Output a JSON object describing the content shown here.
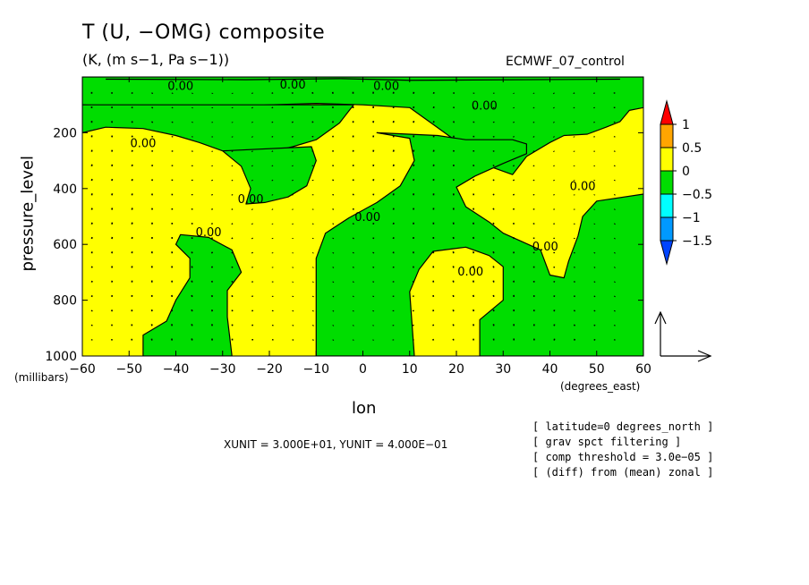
{
  "title": "T (U, −OMG) composite",
  "units": "(K, (m s−1, Pa s−1))",
  "dataset": "ECMWF_07_control",
  "annotations": [
    "[ latitude=0 degrees_north ]",
    "[ grav spct filtering ]",
    "[ comp threshold = 3.0e−05 ]",
    "[ (diff) from (mean) zonal ]"
  ],
  "vector_scale": "XUNIT = 3.000E+01, YUNIT = 4.000E−01",
  "contour_label": "0.00",
  "colorbar": {
    "labels": [
      "1",
      "0.5",
      "0",
      "−0.5",
      "−1",
      "−1.5"
    ],
    "colors": [
      "#ff0000",
      "#ffa500",
      "#ffff00",
      "#00dd00",
      "#00ffff",
      "#0099ff",
      "#0044ff"
    ]
  },
  "chart_data": {
    "type": "heatmap",
    "title": "T (U, −OMG) composite",
    "xlabel": "lon",
    "xunit": "(degrees_east)",
    "ylabel": "pressure_level",
    "yunit": "(millibars)",
    "xlim": [
      -60,
      60
    ],
    "ylim": [
      1000,
      0
    ],
    "x_ticks": [
      -60,
      -50,
      -40,
      -30,
      -20,
      -10,
      0,
      10,
      20,
      30,
      40,
      50,
      60
    ],
    "y_ticks": [
      200,
      400,
      600,
      800,
      1000
    ],
    "x_tick_labels": [
      "−60",
      "−50",
      "−40",
      "−30",
      "−20",
      "−10",
      "0",
      "10",
      "20",
      "30",
      "40",
      "50",
      "60"
    ],
    "y_tick_labels": [
      "200",
      "400",
      "600",
      "800",
      "1000"
    ],
    "contour_levels": [
      -1.5,
      -1,
      -0.5,
      0,
      0.5,
      1
    ],
    "background_field": "positive (0 to 0.5)",
    "negative_regions": [
      {
        "name": "upper band",
        "points": [
          [
            -60,
            100
          ],
          [
            -50,
            110
          ],
          [
            -40,
            130
          ],
          [
            -30,
            110
          ],
          [
            -20,
            100
          ],
          [
            -10,
            95
          ],
          [
            0,
            100
          ],
          [
            10,
            110
          ],
          [
            15,
            170
          ],
          [
            20,
            230
          ],
          [
            27,
            320
          ],
          [
            32,
            350
          ],
          [
            35,
            285
          ],
          [
            40,
            235
          ],
          [
            43,
            210
          ],
          [
            48,
            205
          ],
          [
            52,
            180
          ],
          [
            55,
            160
          ],
          [
            57,
            120
          ],
          [
            60,
            110
          ],
          [
            60,
            0
          ],
          [
            -60,
            0
          ]
        ]
      },
      {
        "name": "upper-left tongue",
        "points": [
          [
            -60,
            200
          ],
          [
            -55,
            180
          ],
          [
            -47,
            185
          ],
          [
            -40,
            210
          ],
          [
            -35,
            235
          ],
          [
            -30,
            265
          ],
          [
            -25,
            280
          ],
          [
            -20,
            270
          ],
          [
            -15,
            250
          ],
          [
            -10,
            225
          ],
          [
            -5,
            165
          ],
          [
            -2,
            100
          ],
          [
            -60,
            100
          ]
        ]
      },
      {
        "name": "mid-left tongue",
        "points": [
          [
            -30,
            265
          ],
          [
            -26,
            320
          ],
          [
            -24,
            400
          ],
          [
            -25,
            455
          ],
          [
            -21,
            450
          ],
          [
            -16,
            430
          ],
          [
            -12,
            390
          ],
          [
            -10,
            300
          ],
          [
            -11,
            250
          ]
        ]
      },
      {
        "name": "central column",
        "points": [
          [
            3,
            200
          ],
          [
            10,
            220
          ],
          [
            11,
            300
          ],
          [
            8,
            390
          ],
          [
            3,
            450
          ],
          [
            -3,
            505
          ],
          [
            -8,
            560
          ],
          [
            -10,
            650
          ],
          [
            -10,
            820
          ],
          [
            -10,
            1000
          ],
          [
            11,
            1000
          ],
          [
            10,
            770
          ],
          [
            12,
            690
          ],
          [
            15,
            625
          ],
          [
            22,
            610
          ],
          [
            27,
            640
          ],
          [
            30,
            680
          ],
          [
            30,
            800
          ],
          [
            25,
            870
          ],
          [
            25,
            1000
          ],
          [
            60,
            1000
          ],
          [
            60,
            420
          ],
          [
            50,
            445
          ],
          [
            47,
            500
          ],
          [
            46,
            570
          ],
          [
            44,
            660
          ],
          [
            43,
            720
          ],
          [
            40,
            710
          ],
          [
            38,
            620
          ],
          [
            30,
            560
          ],
          [
            27,
            520
          ],
          [
            22,
            465
          ],
          [
            20,
            395
          ],
          [
            24,
            355
          ],
          [
            30,
            310
          ],
          [
            35,
            275
          ],
          [
            35,
            240
          ],
          [
            32,
            225
          ],
          [
            22,
            225
          ],
          [
            16,
            210
          ]
        ]
      },
      {
        "name": "lower-left tongue",
        "points": [
          [
            -39,
            565
          ],
          [
            -33,
            575
          ],
          [
            -28,
            620
          ],
          [
            -26,
            700
          ],
          [
            -29,
            765
          ],
          [
            -29,
            860
          ],
          [
            -28,
            1000
          ],
          [
            -47,
            1000
          ],
          [
            -47,
            925
          ],
          [
            -42,
            875
          ],
          [
            -40,
            800
          ],
          [
            -37,
            720
          ],
          [
            -37,
            650
          ],
          [
            -40,
            600
          ]
        ]
      }
    ],
    "contour_zero_labels": [
      {
        "lon": -39,
        "p": 35
      },
      {
        "lon": -15,
        "p": 30
      },
      {
        "lon": 5,
        "p": 35
      },
      {
        "lon": 26,
        "p": 105
      },
      {
        "lon": -47,
        "p": 240
      },
      {
        "lon": -24,
        "p": 440
      },
      {
        "lon": -33,
        "p": 560
      },
      {
        "lon": 1,
        "p": 505
      },
      {
        "lon": 23,
        "p": 700
      },
      {
        "lon": 39,
        "p": 610
      },
      {
        "lon": 47,
        "p": 395
      }
    ],
    "vector_field": "small wind arrows (U, −OMG) over the whole domain"
  }
}
